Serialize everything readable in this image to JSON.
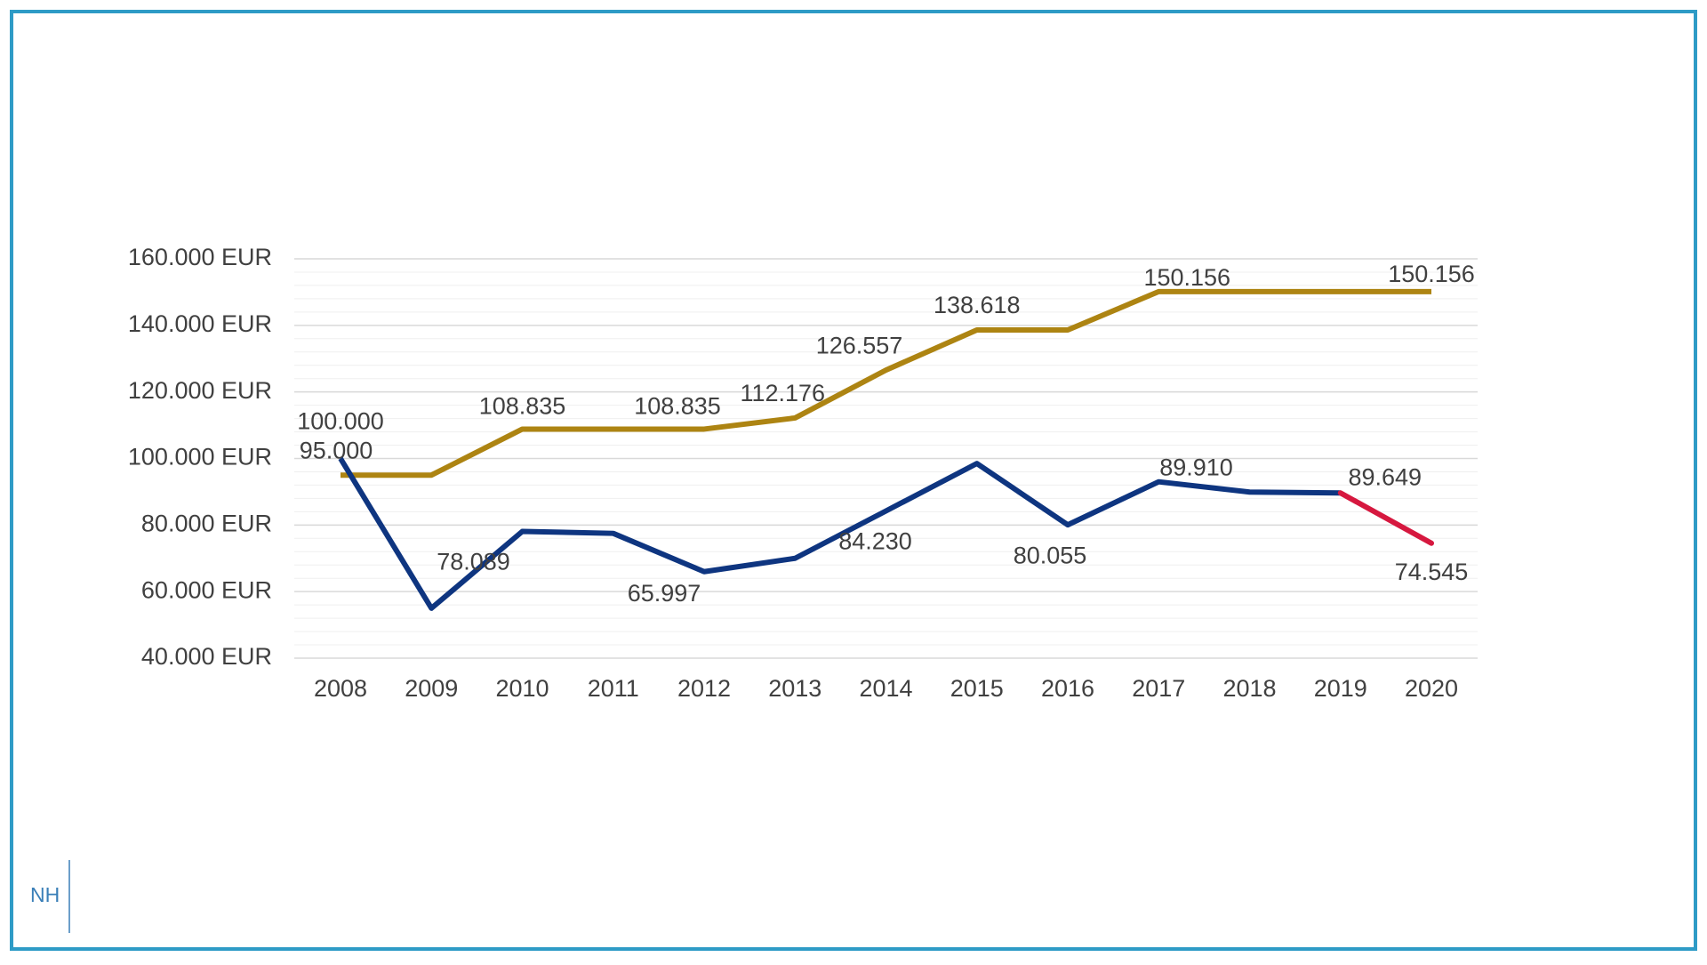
{
  "chart_data": {
    "type": "line",
    "categories": [
      "2008",
      "2009",
      "2010",
      "2011",
      "2012",
      "2013",
      "2014",
      "2015",
      "2016",
      "2017",
      "2018",
      "2019",
      "2020"
    ],
    "series": [
      {
        "color": "#ad8412",
        "values": [
          95000,
          95000,
          108835,
          108835,
          108835,
          112176,
          126557,
          138618,
          138618,
          150156,
          150156,
          150156,
          150156
        ],
        "value_labels": [
          "95.000",
          null,
          "108.835",
          null,
          "108.835",
          "112.176",
          "126.557",
          "138.618",
          null,
          "150.156",
          null,
          null,
          "150.156"
        ]
      },
      {
        "color": "#0e3580",
        "last_segment_color": "#d6183f",
        "values": [
          100000,
          55000,
          78089,
          77500,
          65997,
          70000,
          84230,
          98500,
          80055,
          93000,
          89910,
          89649,
          74545
        ],
        "value_labels": [
          "100.000",
          null,
          "78.089",
          null,
          "65.997",
          null,
          "84.230",
          null,
          "80.055",
          null,
          "89.910",
          "89.649",
          "74.545"
        ]
      }
    ],
    "ylim": [
      40000,
      160000
    ],
    "yticks": [
      {
        "value": 40000,
        "label": "40.000 EUR"
      },
      {
        "value": 60000,
        "label": "60.000 EUR"
      },
      {
        "value": 80000,
        "label": "80.000 EUR"
      },
      {
        "value": 100000,
        "label": "100.000 EUR"
      },
      {
        "value": 120000,
        "label": "120.000 EUR"
      },
      {
        "value": 140000,
        "label": "140.000 EUR"
      },
      {
        "value": 160000,
        "label": "160.000 EUR"
      }
    ],
    "minor_yticks": [
      44000,
      48000,
      52000,
      56000,
      64000,
      68000,
      72000,
      76000,
      84000,
      88000,
      92000,
      96000,
      104000,
      108000,
      112000,
      116000,
      124000,
      128000,
      132000,
      136000,
      144000,
      148000,
      152000,
      156000
    ],
    "grid": true
  },
  "footer": {
    "logo": "NH"
  }
}
